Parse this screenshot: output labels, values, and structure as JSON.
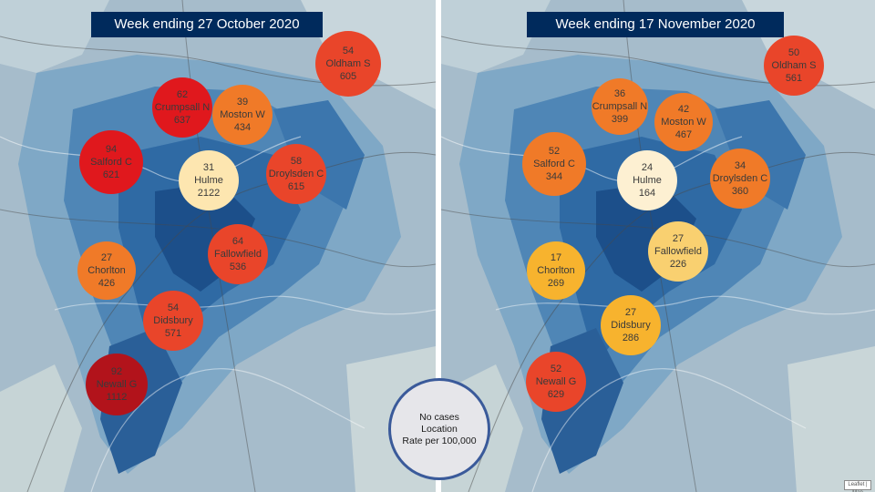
{
  "map_credit": "Leaflet | Map",
  "colors": {
    "title_bg": "#002a5c",
    "divider": "#ffffff",
    "legend_bg": "#e6e6ea",
    "legend_border": "#3a5a9a",
    "rate_scale": [
      "#fde6b0",
      "#f7b32e",
      "#f07a28",
      "#e9452a",
      "#e0181d",
      "#b2131b"
    ]
  },
  "legend": {
    "line1": "No cases",
    "line2": "Location",
    "line3": "Rate per 100,000"
  },
  "panels": [
    {
      "title": "Week ending 27 October 2020",
      "bubbles": [
        {
          "cases": "54",
          "location": "Oldham S",
          "rate": "605",
          "color": "#e9452a"
        },
        {
          "cases": "62",
          "location": "Crumpsall N",
          "rate": "637",
          "color": "#e0181d"
        },
        {
          "cases": "39",
          "location": "Moston W",
          "rate": "434",
          "color": "#f07a28"
        },
        {
          "cases": "94",
          "location": "Salford C",
          "rate": "621",
          "color": "#e0181d"
        },
        {
          "cases": "31",
          "location": "Hulme",
          "rate": "2122",
          "color": "#fde6b0"
        },
        {
          "cases": "58",
          "location": "Droylsden C",
          "rate": "615",
          "color": "#e9452a"
        },
        {
          "cases": "64",
          "location": "Fallowfield",
          "rate": "536",
          "color": "#e9452a"
        },
        {
          "cases": "27",
          "location": "Chorlton",
          "rate": "426",
          "color": "#f07a28"
        },
        {
          "cases": "54",
          "location": "Didsbury",
          "rate": "571",
          "color": "#e9452a"
        },
        {
          "cases": "92",
          "location": "Newall G",
          "rate": "1112",
          "color": "#b2131b"
        }
      ]
    },
    {
      "title": "Week ending 17 November 2020",
      "bubbles": [
        {
          "cases": "50",
          "location": "Oldham S",
          "rate": "561",
          "color": "#e9452a"
        },
        {
          "cases": "36",
          "location": "Crumpsall N",
          "rate": "399",
          "color": "#f07a28"
        },
        {
          "cases": "42",
          "location": "Moston W",
          "rate": "467",
          "color": "#f07a28"
        },
        {
          "cases": "52",
          "location": "Salford C",
          "rate": "344",
          "color": "#f07a28"
        },
        {
          "cases": "24",
          "location": "Hulme",
          "rate": "164",
          "color": "#fdf0d2"
        },
        {
          "cases": "34",
          "location": "Droylsden C",
          "rate": "360",
          "color": "#f07a28"
        },
        {
          "cases": "27",
          "location": "Fallowfield",
          "rate": "226",
          "color": "#f9d070"
        },
        {
          "cases": "17",
          "location": "Chorlton",
          "rate": "269",
          "color": "#f7b32e"
        },
        {
          "cases": "27",
          "location": "Didsbury",
          "rate": "286",
          "color": "#f7b32e"
        },
        {
          "cases": "52",
          "location": "Newall G",
          "rate": "629",
          "color": "#e9452a"
        }
      ]
    }
  ]
}
